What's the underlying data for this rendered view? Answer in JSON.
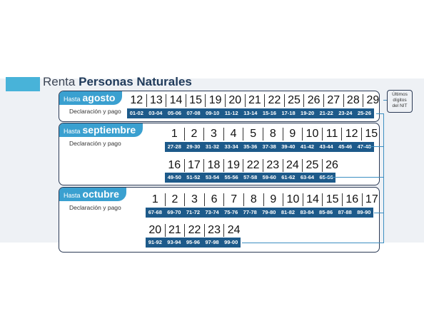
{
  "title": {
    "light": "Renta",
    "bold": "Personas Naturales"
  },
  "legend": {
    "line1": "Últimos",
    "line2": "dígitos",
    "line3": "del NIT"
  },
  "sections": [
    {
      "hasta": "Hasta",
      "month": "agosto",
      "subtitle": "Declaración y pago",
      "rows": [
        {
          "days": [
            "12",
            "13",
            "14",
            "15",
            "19",
            "20",
            "21",
            "22",
            "25",
            "26",
            "27",
            "28",
            "29"
          ],
          "digits": [
            "01-02",
            "03-04",
            "05-06",
            "07-08",
            "09-10",
            "11-12",
            "13-14",
            "15-16",
            "17-18",
            "19-20",
            "21-22",
            "23-24",
            "25-26"
          ]
        }
      ]
    },
    {
      "hasta": "Hasta",
      "month": "septiembre",
      "subtitle": "Declaración y pago",
      "rows": [
        {
          "days": [
            "1",
            "2",
            "3",
            "4",
            "5",
            "8",
            "9",
            "10",
            "11",
            "12",
            "15"
          ],
          "digits": [
            "27-28",
            "29-30",
            "31-32",
            "33-34",
            "35-36",
            "37-38",
            "39-40",
            "41-42",
            "43-44",
            "45-46",
            "47-48"
          ]
        },
        {
          "days": [
            "16",
            "17",
            "18",
            "19",
            "22",
            "23",
            "24",
            "25",
            "26"
          ],
          "digits": [
            "49-50",
            "51-52",
            "53-54",
            "55-56",
            "57-58",
            "59-60",
            "61-62",
            "63-64",
            "65-66"
          ]
        }
      ]
    },
    {
      "hasta": "Hasta",
      "month": "octubre",
      "subtitle": "Declaración y pago",
      "rows": [
        {
          "days": [
            "1",
            "2",
            "3",
            "6",
            "7",
            "8",
            "9",
            "10",
            "14",
            "15",
            "16",
            "17"
          ],
          "digits": [
            "67-68",
            "69-70",
            "71-72",
            "73-74",
            "75-76",
            "77-78",
            "79-80",
            "81-82",
            "83-84",
            "85-86",
            "87-88",
            "89-90"
          ]
        },
        {
          "days": [
            "20",
            "21",
            "22",
            "23",
            "24"
          ],
          "digits": [
            "91-92",
            "93-94",
            "95-96",
            "97-98",
            "99-00"
          ]
        }
      ]
    }
  ]
}
